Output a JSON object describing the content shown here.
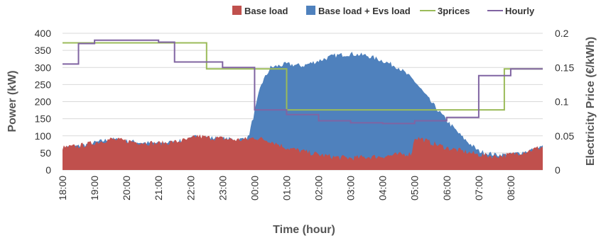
{
  "chart_data": {
    "type": "area",
    "title": "",
    "xlabel": "Time (hour)",
    "ylabel_left": "Power (kW)",
    "ylabel_right": "Electricity Price  (€/kWh)",
    "ylim_left": [
      0,
      400
    ],
    "ylim_right": [
      0,
      0.2
    ],
    "yticks_left": [
      "0",
      "50",
      "100",
      "150",
      "200",
      "250",
      "300",
      "350",
      "400"
    ],
    "yticks_right": [
      "0",
      "0.05",
      "0.1",
      "0.15",
      "0.2"
    ],
    "x_ticks": [
      "18:00",
      "19:00",
      "20:00",
      "21:00",
      "22:00",
      "23:00",
      "00:00",
      "01:00",
      "02:00",
      "03:00",
      "04:00",
      "05:00",
      "06:00",
      "07:00",
      "08:00"
    ],
    "x_unit": "hours from 18:00",
    "xlim": [
      0,
      15
    ],
    "grid": true,
    "legend_position": "top-right",
    "legend": [
      {
        "name": "Base load",
        "color": "#c0504d",
        "kind": "area"
      },
      {
        "name": "Base load + Evs load",
        "color": "#4f81bd",
        "kind": "area"
      },
      {
        "name": "3prices",
        "color": "#9bbb59",
        "kind": "line"
      },
      {
        "name": "Hourly",
        "color": "#8064a2",
        "kind": "line"
      }
    ],
    "series": [
      {
        "name": "Base load",
        "axis": "left",
        "x": [
          0,
          0.5,
          1,
          1.5,
          2,
          2.5,
          3,
          3.5,
          4,
          4.2,
          4.5,
          5,
          5.5,
          5.8,
          6,
          6.5,
          7,
          7.5,
          8,
          8.5,
          9,
          9.5,
          10,
          10.5,
          10.9,
          11,
          11.2,
          11.5,
          12,
          12.5,
          13,
          13.5,
          14,
          14.5,
          15
        ],
        "y": [
          65,
          70,
          80,
          90,
          85,
          80,
          78,
          82,
          90,
          100,
          95,
          92,
          88,
          90,
          95,
          85,
          65,
          55,
          45,
          38,
          35,
          38,
          40,
          45,
          48,
          95,
          92,
          80,
          65,
          55,
          45,
          40,
          45,
          55,
          68
        ]
      },
      {
        "name": "Base load + Evs load",
        "axis": "left",
        "x": [
          0,
          0.5,
          1,
          1.5,
          2,
          2.5,
          3,
          3.5,
          4,
          4.2,
          4.5,
          5,
          5.5,
          5.8,
          6,
          6.2,
          6.5,
          7,
          7.5,
          8,
          8.5,
          9,
          9.5,
          10,
          10.5,
          11,
          11.5,
          12,
          12.5,
          13,
          13.5,
          14,
          14.5,
          15
        ],
        "y": [
          65,
          70,
          80,
          90,
          85,
          80,
          78,
          82,
          90,
          100,
          95,
          92,
          88,
          95,
          170,
          250,
          300,
          310,
          305,
          320,
          335,
          340,
          335,
          320,
          300,
          260,
          200,
          145,
          95,
          55,
          45,
          45,
          55,
          68
        ]
      },
      {
        "name": "3prices",
        "axis": "right",
        "step": true,
        "x": [
          0,
          4.5,
          4.5,
          7.0,
          7.0,
          13.8,
          13.8,
          15
        ],
        "y": [
          0.186,
          0.186,
          0.148,
          0.148,
          0.088,
          0.088,
          0.148,
          0.148
        ]
      },
      {
        "name": "Hourly",
        "axis": "right",
        "step": true,
        "x": [
          0,
          0.5,
          0.5,
          1.0,
          1.0,
          3.0,
          3.0,
          3.5,
          3.5,
          5.0,
          5.0,
          6.0,
          6.0,
          7.0,
          7.0,
          8.0,
          8.0,
          9.0,
          9.0,
          10.0,
          10.0,
          11.0,
          11.0,
          12.0,
          12.0,
          13.0,
          13.0,
          14.0,
          14.0,
          15
        ],
        "y": [
          0.155,
          0.155,
          0.185,
          0.185,
          0.19,
          0.19,
          0.187,
          0.187,
          0.158,
          0.158,
          0.15,
          0.15,
          0.088,
          0.088,
          0.081,
          0.081,
          0.072,
          0.072,
          0.069,
          0.069,
          0.068,
          0.068,
          0.072,
          0.072,
          0.077,
          0.077,
          0.138,
          0.138,
          0.148,
          0.148
        ]
      }
    ]
  }
}
